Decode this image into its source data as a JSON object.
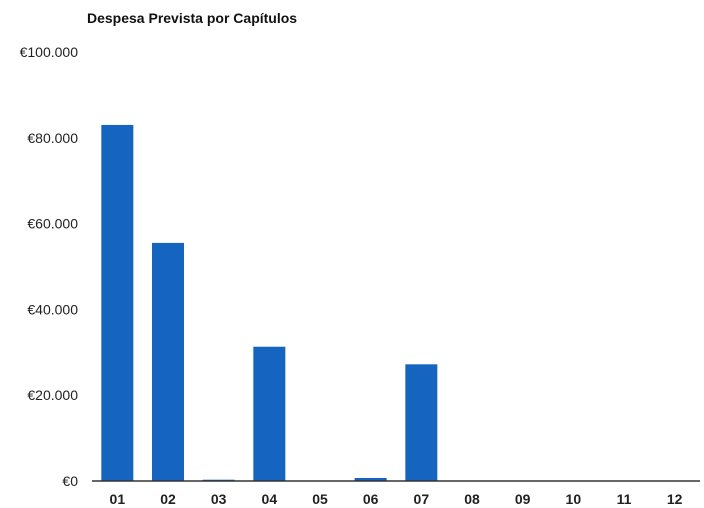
{
  "colors": {
    "bar": "#1565c0",
    "axis": "#333333",
    "background": "#ffffff"
  },
  "chart_data": {
    "type": "bar",
    "title": "Despesa Prevista por Capítulos",
    "xlabel": "",
    "ylabel": "",
    "categories": [
      "01",
      "02",
      "03",
      "04",
      "05",
      "06",
      "07",
      "08",
      "09",
      "10",
      "11",
      "12"
    ],
    "values": [
      83000,
      55500,
      300,
      31300,
      0,
      700,
      27200,
      0,
      0,
      0,
      0,
      0
    ],
    "ylim": [
      0,
      100000
    ],
    "yticks": [
      0,
      20000,
      40000,
      60000,
      80000,
      100000
    ],
    "ytick_labels": [
      "€0",
      "€20.000",
      "€40.000",
      "€60.000",
      "€80.000",
      "€100.000"
    ],
    "grid": false,
    "legend": "none"
  }
}
